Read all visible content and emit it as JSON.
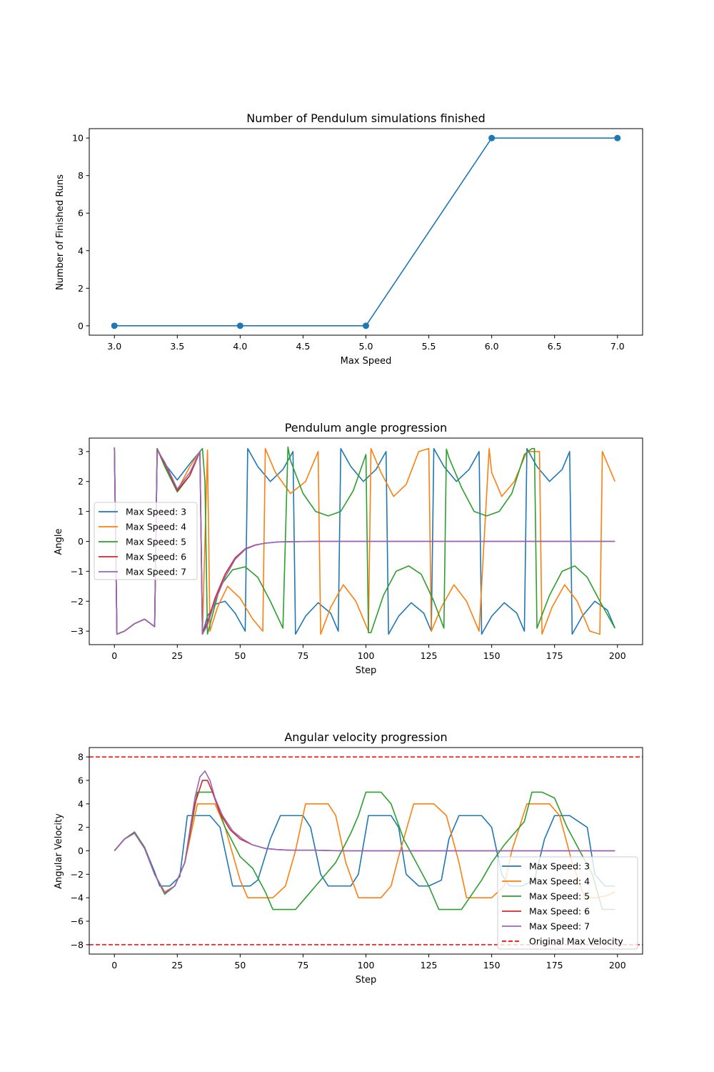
{
  "chart_data": [
    {
      "type": "line",
      "title": "Number of Pendulum simulations finished",
      "xlabel": "Max Speed",
      "ylabel": "Number of Finished Runs",
      "xlim": [
        2.8,
        7.2
      ],
      "ylim": [
        -0.5,
        10.5
      ],
      "xticks": [
        3.0,
        3.5,
        4.0,
        4.5,
        5.0,
        5.5,
        6.0,
        6.5,
        7.0
      ],
      "xtick_labels": [
        "3.0",
        "3.5",
        "4.0",
        "4.5",
        "5.0",
        "5.5",
        "6.0",
        "6.5",
        "7.0"
      ],
      "yticks": [
        0,
        2,
        4,
        6,
        8,
        10
      ],
      "ytick_labels": [
        "0",
        "2",
        "4",
        "6",
        "8",
        "10"
      ],
      "grid": false,
      "markers": true,
      "series": [
        {
          "x": [
            3,
            4,
            5,
            6,
            7
          ],
          "values": [
            0,
            0,
            0,
            10,
            10
          ],
          "color": "#1f77b4"
        }
      ]
    },
    {
      "type": "line",
      "title": "Pendulum angle progression",
      "xlabel": "Step",
      "ylabel": "Angle",
      "xlim": [
        -10,
        210
      ],
      "ylim": [
        -3.45,
        3.45
      ],
      "xticks": [
        0,
        25,
        50,
        75,
        100,
        125,
        150,
        175,
        200
      ],
      "xtick_labels": [
        "0",
        "25",
        "50",
        "75",
        "100",
        "125",
        "150",
        "175",
        "200"
      ],
      "yticks": [
        -3,
        -2,
        -1,
        0,
        1,
        2,
        3
      ],
      "ytick_labels": [
        "−3",
        "−2",
        "−1",
        "0",
        "1",
        "2",
        "3"
      ],
      "grid": false,
      "legend_position": "center-left",
      "series": [
        {
          "name": "Max Speed: 3",
          "color": "#1f77b4",
          "x": [
            0,
            1,
            4,
            8,
            12,
            16,
            17,
            20,
            25,
            30,
            34,
            35,
            37,
            40,
            44,
            48,
            52,
            53,
            57,
            62,
            67,
            71,
            72,
            76,
            81,
            86,
            89,
            90,
            94,
            99,
            104,
            108,
            109,
            113,
            118,
            123,
            126,
            127,
            131,
            136,
            141,
            145,
            146,
            150,
            155,
            160,
            163,
            164,
            168,
            173,
            178,
            181,
            182,
            186,
            191,
            196,
            199
          ],
          "values": [
            3.14,
            -3.1,
            -3.0,
            -2.75,
            -2.6,
            -2.85,
            3.1,
            2.6,
            2.05,
            2.6,
            3.0,
            -3.1,
            -2.5,
            -2.1,
            -2.0,
            -2.4,
            -3.0,
            3.1,
            2.5,
            2.0,
            2.4,
            3.0,
            -3.1,
            -2.5,
            -2.05,
            -2.4,
            -3.0,
            3.1,
            2.5,
            2.0,
            2.4,
            3.0,
            -3.1,
            -2.5,
            -2.05,
            -2.4,
            -3.0,
            3.1,
            2.5,
            2.0,
            2.4,
            3.0,
            -3.1,
            -2.5,
            -2.05,
            -2.4,
            -3.0,
            3.1,
            2.5,
            2.0,
            2.4,
            3.0,
            -3.1,
            -2.5,
            -2.0,
            -2.3,
            -2.9
          ]
        },
        {
          "name": "Max Speed: 4",
          "color": "#ff7f0e",
          "x": [
            0,
            1,
            4,
            8,
            12,
            16,
            17,
            20,
            25,
            30,
            34,
            35,
            37,
            38,
            41,
            45,
            50,
            55,
            59,
            60,
            64,
            70,
            76,
            81,
            82,
            86,
            91,
            96,
            101,
            102,
            106,
            111,
            116,
            121,
            125,
            126,
            130,
            135,
            140,
            145,
            149,
            150,
            154,
            159,
            164,
            169,
            170,
            174,
            179,
            184,
            189,
            193,
            194,
            199
          ],
          "values": [
            3.14,
            -3.1,
            -3.0,
            -2.75,
            -2.6,
            -2.85,
            3.1,
            2.6,
            1.7,
            2.5,
            3.0,
            -3.1,
            3.05,
            -3.0,
            -2.2,
            -1.5,
            -1.9,
            -2.6,
            -3.0,
            3.1,
            2.3,
            1.6,
            2.0,
            3.0,
            -3.1,
            -2.2,
            -1.45,
            -2.0,
            -3.0,
            3.1,
            2.3,
            1.5,
            1.9,
            3.0,
            3.1,
            -3.0,
            -2.2,
            -1.45,
            -2.0,
            -3.0,
            3.1,
            2.3,
            1.5,
            2.0,
            3.0,
            3.0,
            -3.1,
            -2.2,
            -1.45,
            -2.0,
            -3.0,
            -3.1,
            3.0,
            2.0
          ]
        },
        {
          "name": "Max Speed: 5",
          "color": "#2ca02c",
          "x": [
            0,
            1,
            4,
            8,
            12,
            16,
            17,
            20,
            25,
            30,
            34,
            35,
            36,
            37,
            42,
            47,
            52,
            57,
            62,
            67,
            69,
            70,
            75,
            80,
            85,
            90,
            95,
            100,
            101,
            102,
            107,
            112,
            117,
            122,
            127,
            131,
            132,
            133,
            138,
            143,
            148,
            153,
            158,
            163,
            166,
            167,
            168,
            173,
            178,
            183,
            188,
            193,
            199
          ],
          "values": [
            3.14,
            -3.1,
            -3.0,
            -2.75,
            -2.6,
            -2.85,
            3.1,
            2.5,
            1.65,
            2.2,
            3.0,
            3.1,
            2.0,
            -3.1,
            -1.5,
            -0.95,
            -0.85,
            -1.2,
            -2.0,
            -2.9,
            3.15,
            2.7,
            1.6,
            1.0,
            0.85,
            1.0,
            1.7,
            2.9,
            -3.05,
            -3.05,
            -1.8,
            -1.0,
            -0.82,
            -1.1,
            -2.0,
            -2.9,
            3.08,
            2.8,
            1.8,
            1.0,
            0.85,
            1.0,
            1.6,
            2.9,
            3.1,
            3.1,
            -2.9,
            -1.8,
            -1.0,
            -0.82,
            -1.2,
            -2.0,
            -2.9
          ]
        },
        {
          "name": "Max Speed: 6",
          "color": "#d62728",
          "x": [
            0,
            1,
            4,
            8,
            12,
            16,
            17,
            20,
            25,
            30,
            34,
            35,
            37,
            40,
            44,
            48,
            52,
            56,
            60,
            65,
            70,
            80,
            90,
            120,
            150,
            180,
            199
          ],
          "values": [
            3.14,
            -3.1,
            -3.0,
            -2.75,
            -2.6,
            -2.85,
            3.05,
            2.6,
            1.7,
            2.2,
            3.0,
            -3.1,
            -2.7,
            -1.9,
            -1.1,
            -0.55,
            -0.25,
            -0.12,
            -0.06,
            -0.02,
            -0.01,
            0,
            0,
            0,
            0,
            0,
            0
          ]
        },
        {
          "name": "Max Speed: 7",
          "color": "#9467bd",
          "x": [
            0,
            1,
            4,
            8,
            12,
            16,
            17,
            20,
            25,
            30,
            34,
            35,
            37,
            40,
            44,
            48,
            52,
            56,
            60,
            65,
            70,
            80,
            90,
            120,
            150,
            180,
            199
          ],
          "values": [
            3.14,
            -3.1,
            -3.0,
            -2.75,
            -2.6,
            -2.85,
            3.05,
            2.65,
            1.75,
            2.3,
            3.0,
            -3.1,
            -2.8,
            -2.0,
            -1.2,
            -0.6,
            -0.27,
            -0.13,
            -0.06,
            -0.02,
            -0.01,
            0,
            0,
            0,
            0,
            0,
            0
          ]
        }
      ]
    },
    {
      "type": "line",
      "title": "Angular velocity progression",
      "xlabel": "Step",
      "ylabel": "Angular Velocity",
      "xlim": [
        -10,
        210
      ],
      "ylim": [
        -8.8,
        8.8
      ],
      "xticks": [
        0,
        25,
        50,
        75,
        100,
        125,
        150,
        175,
        200
      ],
      "xtick_labels": [
        "0",
        "25",
        "50",
        "75",
        "100",
        "125",
        "150",
        "175",
        "200"
      ],
      "yticks": [
        -8,
        -6,
        -4,
        -2,
        0,
        2,
        4,
        6,
        8
      ],
      "ytick_labels": [
        "−8",
        "−6",
        "−4",
        "−2",
        "0",
        "2",
        "4",
        "6",
        "8"
      ],
      "grid": false,
      "legend_position": "lower-right",
      "hlines": [
        {
          "name": "Original Max Velocity",
          "y": 8,
          "color": "#ff0000",
          "dash": true
        },
        {
          "y": -8,
          "color": "#ff0000",
          "dash": true
        }
      ],
      "series": [
        {
          "name": "Max Speed: 3",
          "color": "#1f77b4",
          "x": [
            0,
            4,
            8,
            12,
            16,
            18,
            22,
            26,
            29,
            32,
            36,
            38,
            42,
            47,
            50,
            54,
            57,
            62,
            66,
            70,
            75,
            78,
            82,
            85,
            88,
            94,
            97,
            101,
            105,
            110,
            113,
            116,
            121,
            125,
            130,
            133,
            137,
            140,
            146,
            150,
            154,
            157,
            162,
            167,
            171,
            175,
            178,
            181,
            188,
            191,
            195,
            199
          ],
          "values": [
            0,
            1.0,
            1.6,
            0.3,
            -1.8,
            -3.0,
            -3.0,
            -2.2,
            3.0,
            3.0,
            3.0,
            3.0,
            2.0,
            -3.0,
            -3.0,
            -3.0,
            -2.5,
            1.0,
            3.0,
            3.0,
            3.0,
            2.0,
            -2.0,
            -3.0,
            -3.0,
            -3.0,
            -2.0,
            3.0,
            3.0,
            3.0,
            2.0,
            -2.0,
            -3.0,
            -3.0,
            -2.5,
            1.0,
            3.0,
            3.0,
            3.0,
            2.0,
            -2.0,
            -3.0,
            -3.0,
            -2.5,
            1.0,
            3.0,
            3.0,
            3.0,
            2.0,
            -2.0,
            -3.0,
            -3.0
          ]
        },
        {
          "name": "Max Speed: 4",
          "color": "#ff7f0e",
          "x": [
            0,
            4,
            8,
            12,
            16,
            20,
            24,
            28,
            33,
            40,
            44,
            50,
            53,
            58,
            63,
            68,
            72,
            76,
            80,
            85,
            88,
            92,
            97,
            101,
            106,
            110,
            113,
            119,
            122,
            127,
            132,
            137,
            140,
            146,
            150,
            155,
            158,
            164,
            168,
            173,
            177,
            182,
            187,
            192,
            196,
            199
          ],
          "values": [
            0,
            1.0,
            1.6,
            0.3,
            -2.0,
            -3.5,
            -3.0,
            -1.0,
            4.0,
            4.0,
            2.0,
            -2.5,
            -4.0,
            -4.0,
            -4.0,
            -3.0,
            0.0,
            4.0,
            4.0,
            4.0,
            3.0,
            -1.0,
            -4.0,
            -4.0,
            -4.0,
            -3.0,
            -0.5,
            4.0,
            4.0,
            4.0,
            3.0,
            -1.0,
            -4.0,
            -4.0,
            -4.0,
            -3.0,
            0.0,
            4.0,
            4.0,
            4.0,
            3.0,
            -1.0,
            -4.0,
            -4.0,
            -3.8,
            -3.5
          ]
        },
        {
          "name": "Max Speed: 5",
          "color": "#2ca02c",
          "x": [
            0,
            4,
            8,
            12,
            16,
            20,
            24,
            28,
            33,
            39,
            44,
            50,
            55,
            60,
            63,
            66,
            72,
            76,
            80,
            88,
            94,
            97,
            100,
            106,
            110,
            115,
            120,
            125,
            129,
            133,
            138,
            146,
            150,
            155,
            159,
            163,
            166,
            170,
            175,
            180,
            185,
            190,
            194,
            199
          ],
          "values": [
            0,
            1.0,
            1.6,
            0.3,
            -2.0,
            -3.7,
            -3.0,
            -1.0,
            5.0,
            5.0,
            2.0,
            -0.5,
            -1.5,
            -3.5,
            -5.0,
            -5.0,
            -5.0,
            -4.0,
            -3.0,
            -1.0,
            1.5,
            3.0,
            5.0,
            5.0,
            4.0,
            1.0,
            -1.0,
            -3.0,
            -5.0,
            -5.0,
            -5.0,
            -2.5,
            -1.0,
            0.5,
            1.5,
            2.5,
            5.0,
            5.0,
            4.5,
            2.0,
            0.0,
            -2.0,
            -5.0,
            -5.0
          ]
        },
        {
          "name": "Max Speed: 6",
          "color": "#d62728",
          "x": [
            0,
            4,
            8,
            12,
            16,
            20,
            24,
            28,
            32,
            35,
            37,
            39,
            42,
            46,
            50,
            55,
            60,
            65,
            70,
            80,
            90,
            100,
            120,
            150,
            180,
            199
          ],
          "values": [
            0,
            1.0,
            1.5,
            0.2,
            -2.0,
            -3.6,
            -3.0,
            -1.0,
            4.0,
            6.0,
            6.0,
            5.0,
            3.2,
            1.8,
            1.0,
            0.5,
            0.2,
            0.1,
            0.05,
            0.05,
            0,
            0,
            0,
            0,
            0,
            0
          ]
        },
        {
          "name": "Max Speed: 7",
          "color": "#9467bd",
          "x": [
            0,
            4,
            8,
            12,
            16,
            20,
            24,
            28,
            32,
            34,
            36,
            38,
            40,
            43,
            47,
            51,
            55,
            60,
            65,
            70,
            80,
            90,
            100,
            120,
            150,
            180,
            199
          ],
          "values": [
            0,
            1.0,
            1.5,
            0.2,
            -2.0,
            -3.6,
            -3.0,
            -1.0,
            4.5,
            6.3,
            6.8,
            6.0,
            4.5,
            3.0,
            1.7,
            1.0,
            0.5,
            0.2,
            0.1,
            0.05,
            0.05,
            0,
            0,
            0,
            0,
            0,
            0
          ]
        }
      ]
    }
  ]
}
